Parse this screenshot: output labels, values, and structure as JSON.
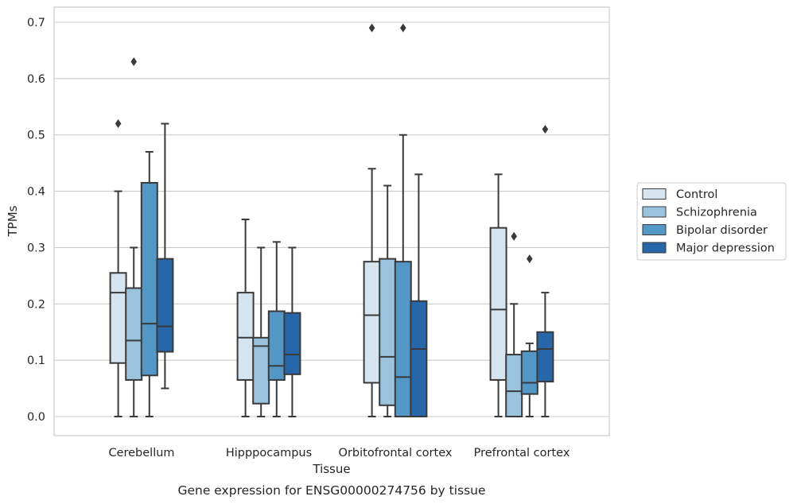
{
  "chart_data": {
    "type": "box",
    "title": "",
    "caption": "Gene expression for ENSG00000274756 by tissue",
    "xlabel": "Tissue",
    "ylabel": "TPMs",
    "ylim": [
      -0.033,
      0.725
    ],
    "yticks": [
      "0.0",
      "0.1",
      "0.2",
      "0.3",
      "0.4",
      "0.5",
      "0.6",
      "0.7"
    ],
    "grid": "horizontal",
    "legend_position": "right",
    "categories": [
      "Cerebellum",
      "Hipppocampus",
      "Orbitofrontal cortex",
      "Prefrontal cortex"
    ],
    "series": [
      {
        "name": "Control",
        "color": "#d6e4f0",
        "boxes": [
          {
            "whisker_low": 0.0,
            "q1": 0.095,
            "median": 0.22,
            "q3": 0.255,
            "whisker_high": 0.4,
            "outliers": [
              0.52
            ]
          },
          {
            "whisker_low": 0.0,
            "q1": 0.065,
            "median": 0.14,
            "q3": 0.22,
            "whisker_high": 0.35,
            "outliers": []
          },
          {
            "whisker_low": 0.0,
            "q1": 0.06,
            "median": 0.18,
            "q3": 0.275,
            "whisker_high": 0.44,
            "outliers": [
              0.69
            ]
          },
          {
            "whisker_low": 0.0,
            "q1": 0.065,
            "median": 0.19,
            "q3": 0.335,
            "whisker_high": 0.43,
            "outliers": []
          }
        ]
      },
      {
        "name": "Schizophrenia",
        "color": "#9ac3dd",
        "boxes": [
          {
            "whisker_low": 0.0,
            "q1": 0.065,
            "median": 0.135,
            "q3": 0.228,
            "whisker_high": 0.3,
            "outliers": [
              0.63
            ]
          },
          {
            "whisker_low": 0.0,
            "q1": 0.023,
            "median": 0.125,
            "q3": 0.14,
            "whisker_high": 0.3,
            "outliers": []
          },
          {
            "whisker_low": 0.0,
            "q1": 0.02,
            "median": 0.106,
            "q3": 0.28,
            "whisker_high": 0.41,
            "outliers": []
          },
          {
            "whisker_low": 0.0,
            "q1": 0.0,
            "median": 0.045,
            "q3": 0.11,
            "whisker_high": 0.2,
            "outliers": [
              0.32
            ]
          }
        ]
      },
      {
        "name": "Bipolar disorder",
        "color": "#5297c6",
        "boxes": [
          {
            "whisker_low": 0.0,
            "q1": 0.073,
            "median": 0.165,
            "q3": 0.415,
            "whisker_high": 0.47,
            "outliers": []
          },
          {
            "whisker_low": 0.0,
            "q1": 0.065,
            "median": 0.09,
            "q3": 0.187,
            "whisker_high": 0.31,
            "outliers": []
          },
          {
            "whisker_low": 0.0,
            "q1": 0.0,
            "median": 0.07,
            "q3": 0.275,
            "whisker_high": 0.5,
            "outliers": [
              0.69
            ]
          },
          {
            "whisker_low": 0.0,
            "q1": 0.04,
            "median": 0.06,
            "q3": 0.116,
            "whisker_high": 0.13,
            "outliers": [
              0.28
            ]
          }
        ]
      },
      {
        "name": "Major depression",
        "color": "#2766a8",
        "boxes": [
          {
            "whisker_low": 0.05,
            "q1": 0.115,
            "median": 0.16,
            "q3": 0.28,
            "whisker_high": 0.52,
            "outliers": []
          },
          {
            "whisker_low": 0.0,
            "q1": 0.075,
            "median": 0.11,
            "q3": 0.184,
            "whisker_high": 0.3,
            "outliers": []
          },
          {
            "whisker_low": 0.0,
            "q1": 0.0,
            "median": 0.12,
            "q3": 0.205,
            "whisker_high": 0.43,
            "outliers": []
          },
          {
            "whisker_low": 0.0,
            "q1": 0.062,
            "median": 0.12,
            "q3": 0.15,
            "whisker_high": 0.22,
            "outliers": [
              0.51
            ]
          }
        ]
      }
    ],
    "colors": {
      "grid": "#cccccc",
      "frame": "#cccccc",
      "box_edge": "#3a3a3a",
      "text": "#262626"
    }
  }
}
